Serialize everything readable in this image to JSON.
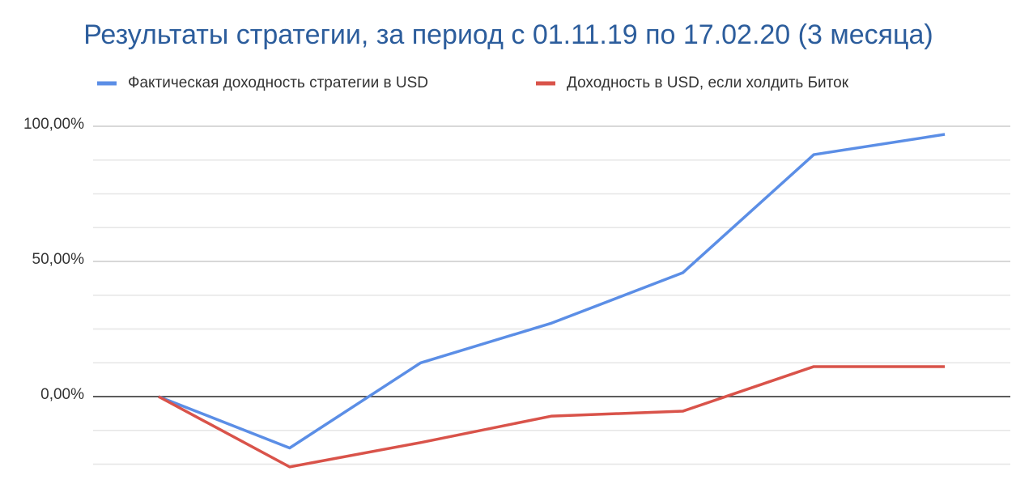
{
  "chart_data": {
    "type": "line",
    "title": "Результаты стратегии, за период с 01.11.19 по 17.02.20 (3 месяца)",
    "categories": [
      null,
      null,
      null,
      null,
      null,
      null,
      null
    ],
    "series": [
      {
        "name": "Фактическая доходность стратегии в USD",
        "color": "#5b8ee6",
        "values": [
          0,
          -19,
          12.5,
          27.2,
          45.8,
          89.5,
          97
        ]
      },
      {
        "name": "Доходность в USD, если холдить Биток",
        "color": "#d9534a",
        "values": [
          0,
          -26,
          -17,
          -7.2,
          -5.4,
          11.1,
          11.1
        ]
      }
    ],
    "ylim": [
      -32,
      105
    ],
    "yticks": [
      {
        "value": 0,
        "label": "0,00%"
      },
      {
        "value": 50,
        "label": "50,00%"
      },
      {
        "value": 100,
        "label": "100,00%"
      }
    ],
    "minor_gridlines": [
      -25,
      -12.5,
      12.5,
      25,
      37.5,
      62.5,
      75,
      87.5
    ],
    "grid": true,
    "legend": "top"
  }
}
